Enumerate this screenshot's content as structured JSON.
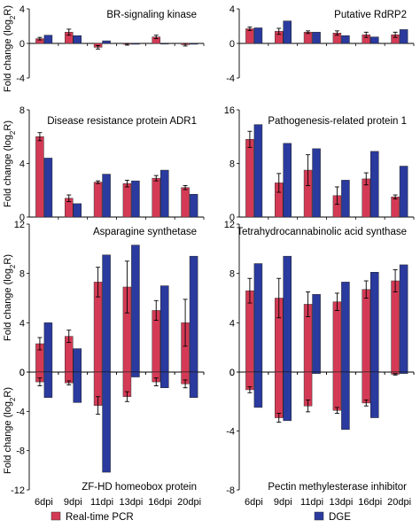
{
  "chart_data": {
    "type": "bar",
    "categories": [
      "6dpi",
      "9dpi",
      "11dpi",
      "13dpi",
      "16dpi",
      "20dpi"
    ],
    "legend": [
      {
        "name": "Real-time PCR",
        "color": "#d43a55"
      },
      {
        "name": "DGE",
        "color": "#2a3a9e"
      }
    ],
    "ylabel": "Fold change (log",
    "ylabel_sub": "2",
    "ylabel_end": "R)",
    "panels": [
      {
        "id": "br-signaling-kinase",
        "title": "BR-signaling kinase",
        "ylim": [
          -4,
          4
        ],
        "yticks": [
          -4,
          0,
          4
        ],
        "series": [
          {
            "name": "Real-time PCR",
            "values": [
              0.55,
              1.3,
              -0.45,
              -0.1,
              0.75,
              -0.15
            ],
            "errors": [
              0.15,
              0.35,
              0.2,
              0.1,
              0.2,
              0.15
            ]
          },
          {
            "name": "DGE",
            "values": [
              0.95,
              0.9,
              0.3,
              -0.1,
              0.0,
              -0.1
            ]
          }
        ]
      },
      {
        "id": "putative-rdrp2",
        "title": "Putative RdRP2",
        "ylim": [
          -4,
          4
        ],
        "yticks": [
          -4,
          0,
          4
        ],
        "series": [
          {
            "name": "Real-time PCR",
            "values": [
              1.7,
              1.4,
              1.3,
              1.2,
              1.0,
              1.0
            ],
            "errors": [
              0.2,
              0.35,
              0.15,
              0.25,
              0.3,
              0.3
            ]
          },
          {
            "name": "DGE",
            "values": [
              1.8,
              2.6,
              1.3,
              0.9,
              0.75,
              1.6
            ]
          }
        ]
      },
      {
        "id": "disease-resistance-protein-adr1",
        "title": "Disease resistance protein ADR1",
        "ylim": [
          0,
          8
        ],
        "yticks": [
          0,
          4,
          8
        ],
        "series": [
          {
            "name": "Real-time PCR",
            "values": [
              6.0,
              1.4,
              2.6,
              2.5,
              2.9,
              2.2
            ],
            "errors": [
              0.3,
              0.25,
              0.1,
              0.25,
              0.2,
              0.15
            ]
          },
          {
            "name": "DGE",
            "values": [
              4.4,
              1.0,
              3.2,
              2.7,
              3.5,
              1.7
            ]
          }
        ]
      },
      {
        "id": "pathogenesis-related-protein-1",
        "title": "Pathogenesis-related protein 1",
        "ylim": [
          0,
          16
        ],
        "yticks": [
          0,
          8,
          16
        ],
        "series": [
          {
            "name": "Real-time PCR",
            "values": [
              11.6,
              5.1,
              7.0,
              3.2,
              5.7,
              3.0
            ],
            "errors": [
              1.2,
              1.4,
              2.3,
              1.3,
              0.9,
              0.3
            ]
          },
          {
            "name": "DGE",
            "values": [
              13.8,
              11.0,
              10.2,
              5.5,
              9.8,
              7.6
            ]
          }
        ]
      },
      {
        "id": "asparagine-synthetase",
        "title": "Asparagine synthetase",
        "ylim": [
          0,
          12
        ],
        "yticks": [
          0,
          4,
          8,
          12
        ],
        "series": [
          {
            "name": "Real-time PCR",
            "values": [
              2.3,
              2.9,
              7.3,
              6.9,
              5.0,
              4.0
            ],
            "errors": [
              0.5,
              0.5,
              1.2,
              2.1,
              0.8,
              1.9
            ]
          },
          {
            "name": "DGE",
            "values": [
              4.0,
              1.9,
              9.5,
              10.3,
              7.0,
              9.4
            ]
          }
        ]
      },
      {
        "id": "tetrahydrocannabinolic-acid-synthase",
        "title": "Tetrahydrocannabinolic acid synthase",
        "ylim": [
          0,
          12
        ],
        "yticks": [
          0,
          4,
          8,
          12
        ],
        "series": [
          {
            "name": "Real-time PCR",
            "values": [
              6.6,
              6.0,
              5.5,
              5.7,
              6.7,
              7.4
            ],
            "errors": [
              1.0,
              1.6,
              1.0,
              0.7,
              0.7,
              0.9
            ]
          },
          {
            "name": "DGE",
            "values": [
              8.8,
              9.4,
              6.3,
              7.3,
              8.1,
              8.7
            ]
          }
        ]
      },
      {
        "id": "zf-hd-homeobox-protein",
        "title": "ZF-HD homeobox protein",
        "ylim": [
          -12,
          0
        ],
        "yticks": [
          -12,
          -8,
          -4,
          0
        ],
        "series": [
          {
            "name": "Real-time PCR",
            "values": [
              -1.0,
              -1.1,
              -3.4,
              -2.5,
              -1.0,
              -1.2
            ],
            "errors": [
              0.4,
              0.2,
              0.9,
              0.5,
              0.4,
              0.4
            ]
          },
          {
            "name": "DGE",
            "values": [
              -2.6,
              -3.1,
              -10.2,
              -0.5,
              -1.6,
              -2.6
            ]
          }
        ]
      },
      {
        "id": "pectin-methylesterase-inhibitor",
        "title": "Pectin methylesterase inhibitor",
        "ylim": [
          -8,
          0
        ],
        "yticks": [
          -8,
          -4,
          0
        ],
        "series": [
          {
            "name": "Real-time PCR",
            "values": [
              -1.2,
              -3.1,
              -2.3,
              -2.6,
              -2.1,
              -0.15
            ],
            "errors": [
              0.2,
              0.3,
              0.4,
              0.2,
              0.2,
              0.05
            ]
          },
          {
            "name": "DGE",
            "values": [
              -2.4,
              -3.3,
              -0.1,
              -3.9,
              -3.1,
              -0.1
            ]
          }
        ]
      }
    ]
  }
}
